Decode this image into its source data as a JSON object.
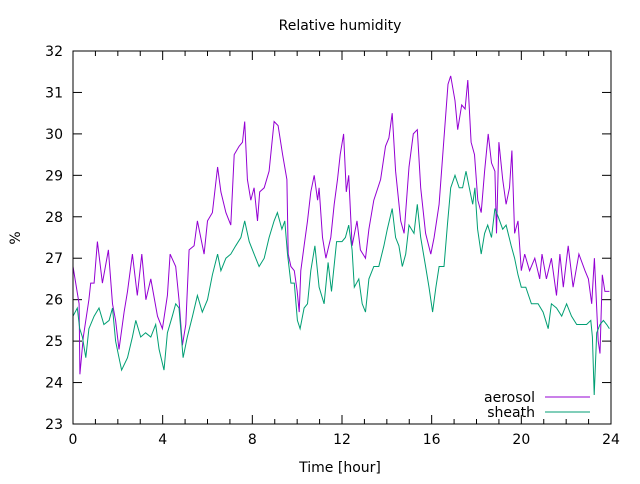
{
  "chart_data": {
    "type": "line",
    "title": "Relative humidity",
    "xlabel": "Time [hour]",
    "ylabel": "%",
    "xlim": [
      0,
      24
    ],
    "ylim": [
      23,
      32
    ],
    "xticks": [
      0,
      4,
      8,
      12,
      16,
      20,
      24
    ],
    "xminor_step": 1,
    "yticks": [
      23,
      24,
      25,
      26,
      27,
      28,
      29,
      30,
      31,
      32
    ],
    "grid": false,
    "legend_position": "bottom-right",
    "series": [
      {
        "name": "aerosol",
        "color": "#9400d3",
        "x": [
          0,
          0.27,
          0.31,
          0.46,
          0.71,
          0.79,
          0.94,
          1.09,
          1.31,
          1.58,
          1.76,
          1.9,
          2.05,
          2.28,
          2.43,
          2.65,
          2.87,
          3.07,
          3.25,
          3.47,
          3.77,
          3.99,
          4.21,
          4.33,
          4.58,
          4.73,
          4.88,
          5.03,
          5.18,
          5.4,
          5.55,
          5.85,
          6.0,
          6.22,
          6.45,
          6.6,
          6.82,
          7.04,
          7.19,
          7.41,
          7.56,
          7.66,
          7.78,
          7.93,
          8.08,
          8.23,
          8.33,
          8.53,
          8.75,
          8.97,
          9.15,
          9.35,
          9.54,
          9.6,
          9.72,
          9.87,
          10.0,
          10.09,
          10.16,
          10.31,
          10.46,
          10.61,
          10.76,
          10.91,
          10.98,
          11.13,
          11.28,
          11.5,
          11.65,
          11.8,
          11.92,
          12.07,
          12.19,
          12.3,
          12.45,
          12.67,
          12.82,
          13.05,
          13.2,
          13.42,
          13.72,
          13.94,
          14.09,
          14.24,
          14.39,
          14.62,
          14.77,
          14.99,
          15.18,
          15.36,
          15.51,
          15.73,
          15.96,
          16.11,
          16.33,
          16.55,
          16.73,
          16.85,
          17.04,
          17.16,
          17.34,
          17.49,
          17.61,
          17.76,
          17.91,
          18.06,
          18.21,
          18.36,
          18.52,
          18.67,
          18.82,
          18.89,
          19.0,
          19.17,
          19.32,
          19.47,
          19.58,
          19.7,
          19.85,
          20.0,
          20.15,
          20.37,
          20.6,
          20.82,
          20.92,
          21.12,
          21.34,
          21.57,
          21.72,
          21.87,
          22.09,
          22.31,
          22.57,
          22.84,
          22.99,
          23.14,
          23.26,
          23.43,
          23.51,
          23.61,
          23.73,
          23.93
        ],
        "y": [
          26.8,
          25.9,
          24.2,
          25.1,
          26.0,
          26.4,
          26.4,
          27.4,
          26.4,
          27.2,
          25.9,
          25.5,
          24.8,
          25.7,
          26.2,
          27.1,
          26.1,
          27.1,
          26.0,
          26.5,
          25.6,
          25.3,
          26.1,
          27.1,
          26.8,
          26.0,
          24.9,
          25.4,
          27.2,
          27.3,
          27.9,
          27.1,
          27.9,
          28.1,
          29.2,
          28.6,
          28.1,
          27.8,
          29.5,
          29.7,
          29.8,
          30.3,
          28.9,
          28.4,
          28.7,
          27.9,
          28.6,
          28.7,
          29.1,
          30.3,
          30.2,
          29.5,
          28.9,
          27.1,
          26.8,
          26.7,
          26.2,
          25.7,
          26.7,
          27.3,
          27.9,
          28.6,
          29.0,
          28.4,
          28.7,
          27.5,
          27.0,
          27.5,
          28.3,
          28.9,
          29.5,
          30.0,
          28.6,
          29.0,
          27.3,
          27.9,
          27.2,
          27.0,
          27.7,
          28.4,
          28.9,
          29.7,
          29.9,
          30.5,
          29.1,
          27.9,
          27.6,
          29.2,
          30.0,
          30.1,
          28.7,
          27.6,
          27.1,
          27.5,
          28.3,
          29.9,
          31.2,
          31.4,
          30.8,
          30.1,
          30.7,
          30.6,
          31.3,
          29.8,
          29.5,
          28.4,
          28.1,
          29.1,
          30.0,
          29.3,
          29.1,
          27.6,
          29.8,
          28.9,
          28.3,
          28.7,
          29.6,
          27.6,
          27.9,
          26.7,
          27.1,
          26.7,
          27.0,
          26.5,
          27.1,
          26.5,
          27.0,
          26.1,
          27.1,
          26.3,
          27.3,
          26.3,
          27.1,
          26.7,
          26.5,
          25.9,
          27.0,
          25.0,
          24.7,
          26.6,
          26.2,
          26.2
        ]
      },
      {
        "name": "sheath",
        "color": "#009e73",
        "x": [
          0,
          0.19,
          0.3,
          0.42,
          0.57,
          0.71,
          0.94,
          1.16,
          1.38,
          1.61,
          1.76,
          1.9,
          2.05,
          2.17,
          2.43,
          2.65,
          2.8,
          3.02,
          3.24,
          3.47,
          3.69,
          3.84,
          4.06,
          4.21,
          4.43,
          4.58,
          4.73,
          4.91,
          5.1,
          5.33,
          5.55,
          5.77,
          6.0,
          6.22,
          6.45,
          6.6,
          6.82,
          7.04,
          7.26,
          7.49,
          7.66,
          7.86,
          8.08,
          8.3,
          8.53,
          8.75,
          8.97,
          9.12,
          9.32,
          9.45,
          9.57,
          9.72,
          9.87,
          10.01,
          10.13,
          10.31,
          10.46,
          10.61,
          10.79,
          10.98,
          11.2,
          11.38,
          11.53,
          11.76,
          12.0,
          12.15,
          12.3,
          12.45,
          12.55,
          12.75,
          12.9,
          13.05,
          13.2,
          13.42,
          13.64,
          13.87,
          14.02,
          14.24,
          14.39,
          14.54,
          14.69,
          14.84,
          14.99,
          15.21,
          15.36,
          15.51,
          15.73,
          15.88,
          16.04,
          16.19,
          16.33,
          16.55,
          16.7,
          16.85,
          17.04,
          17.23,
          17.38,
          17.53,
          17.68,
          17.83,
          17.93,
          18.05,
          18.21,
          18.36,
          18.5,
          18.67,
          18.82,
          18.97,
          19.17,
          19.32,
          19.55,
          19.7,
          19.85,
          20.0,
          20.2,
          20.45,
          20.75,
          20.97,
          21.2,
          21.34,
          21.57,
          21.8,
          22.02,
          22.24,
          22.47,
          22.69,
          22.91,
          23.1,
          23.17,
          23.25,
          23.36,
          23.51,
          23.66,
          23.81,
          23.93
        ],
        "y": [
          25.6,
          25.8,
          25.3,
          25.1,
          24.6,
          25.3,
          25.6,
          25.8,
          25.4,
          25.5,
          25.8,
          25.0,
          24.6,
          24.3,
          24.6,
          25.1,
          25.5,
          25.1,
          25.2,
          25.1,
          25.4,
          24.8,
          24.3,
          25.2,
          25.6,
          25.9,
          25.8,
          24.6,
          25.1,
          25.6,
          26.1,
          25.7,
          26.0,
          26.6,
          27.1,
          26.7,
          27.0,
          27.1,
          27.3,
          27.5,
          27.9,
          27.4,
          27.1,
          26.8,
          27.0,
          27.5,
          27.9,
          28.1,
          27.7,
          27.9,
          27.1,
          26.4,
          26.4,
          25.5,
          25.3,
          25.8,
          25.9,
          26.7,
          27.3,
          26.3,
          25.9,
          26.9,
          26.2,
          27.4,
          27.4,
          27.5,
          27.8,
          27.2,
          26.3,
          26.5,
          25.9,
          25.7,
          26.5,
          26.8,
          26.8,
          27.3,
          27.7,
          28.2,
          27.5,
          27.3,
          26.8,
          27.1,
          27.8,
          27.6,
          28.3,
          27.5,
          26.8,
          26.3,
          25.7,
          26.3,
          26.8,
          26.8,
          27.8,
          28.7,
          29.0,
          28.7,
          28.7,
          29.1,
          28.7,
          28.3,
          28.7,
          27.7,
          27.1,
          27.6,
          27.8,
          27.5,
          28.2,
          28.0,
          27.7,
          27.8,
          27.3,
          27.0,
          26.6,
          26.3,
          26.3,
          25.9,
          25.9,
          25.7,
          25.3,
          25.9,
          25.8,
          25.6,
          25.9,
          25.6,
          25.4,
          25.4,
          25.4,
          25.5,
          25.1,
          23.7,
          25.2,
          25.4,
          25.5,
          25.4,
          25.3
        ]
      }
    ]
  }
}
